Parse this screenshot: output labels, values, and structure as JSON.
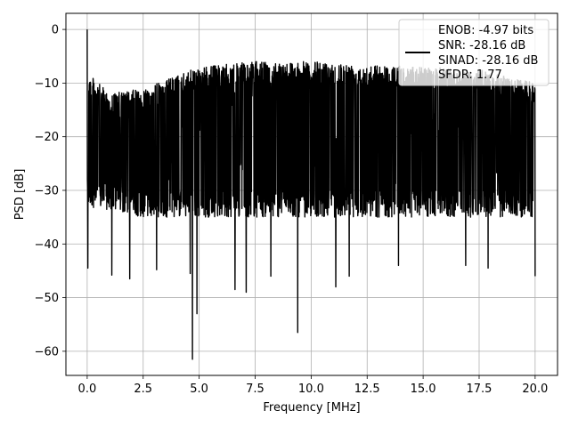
{
  "chart_data": {
    "type": "line",
    "title": "",
    "xlabel": "Frequency [MHz]",
    "ylabel": "PSD [dB]",
    "xlim": [
      -0.95,
      21.0
    ],
    "ylim": [
      -64.5,
      3.0
    ],
    "xticks": [
      0.0,
      2.5,
      5.0,
      7.5,
      10.0,
      12.5,
      15.0,
      17.5,
      20.0
    ],
    "xtick_labels": [
      "0.0",
      "2.5",
      "5.0",
      "7.5",
      "10.0",
      "12.5",
      "15.0",
      "17.5",
      "20.0"
    ],
    "yticks": [
      0,
      -10,
      -20,
      -30,
      -40,
      -50,
      -60
    ],
    "ytick_labels": [
      "0",
      "−10",
      "−20",
      "−30",
      "−40",
      "−50",
      "−60"
    ],
    "grid": true,
    "legend_position": "top-right",
    "line_color": "#000000",
    "legend": {
      "entries": [
        "ENOB: -4.97 bits",
        "SNR: -28.16 dB",
        "SINAD: -28.16 dB",
        "SFDR: 1.77"
      ]
    },
    "series": [
      {
        "x_range": [
          0.0,
          20.0
        ],
        "peak": {
          "x": 0.0,
          "y": 0.0
        },
        "upper_envelope": [
          [
            0.0,
            -8
          ],
          [
            1.0,
            -12
          ],
          [
            2.5,
            -11
          ],
          [
            5.0,
            -7
          ],
          [
            7.5,
            -6
          ],
          [
            10.0,
            -6
          ],
          [
            12.5,
            -6.5
          ],
          [
            15.0,
            -7
          ],
          [
            17.5,
            -7.5
          ],
          [
            20.0,
            -10
          ]
        ],
        "lower_envelope": [
          [
            0.0,
            -33
          ],
          [
            2.5,
            -35
          ],
          [
            5.0,
            -35
          ],
          [
            7.5,
            -35
          ],
          [
            10.0,
            -35
          ],
          [
            12.5,
            -35
          ],
          [
            15.0,
            -35
          ],
          [
            17.5,
            -35
          ],
          [
            20.0,
            -35
          ]
        ],
        "notable_dips": [
          [
            0.03,
            -44.5
          ],
          [
            1.1,
            -45.8
          ],
          [
            1.9,
            -46.5
          ],
          [
            3.1,
            -44.8
          ],
          [
            4.6,
            -45.5
          ],
          [
            4.7,
            -61.5
          ],
          [
            4.9,
            -53.0
          ],
          [
            6.6,
            -48.5
          ],
          [
            7.1,
            -49.0
          ],
          [
            8.2,
            -46.0
          ],
          [
            9.4,
            -56.5
          ],
          [
            11.1,
            -48.0
          ],
          [
            11.7,
            -46.0
          ],
          [
            13.9,
            -44.0
          ],
          [
            16.9,
            -44.0
          ],
          [
            17.9,
            -44.5
          ],
          [
            20.0,
            -46.0
          ]
        ]
      }
    ]
  }
}
